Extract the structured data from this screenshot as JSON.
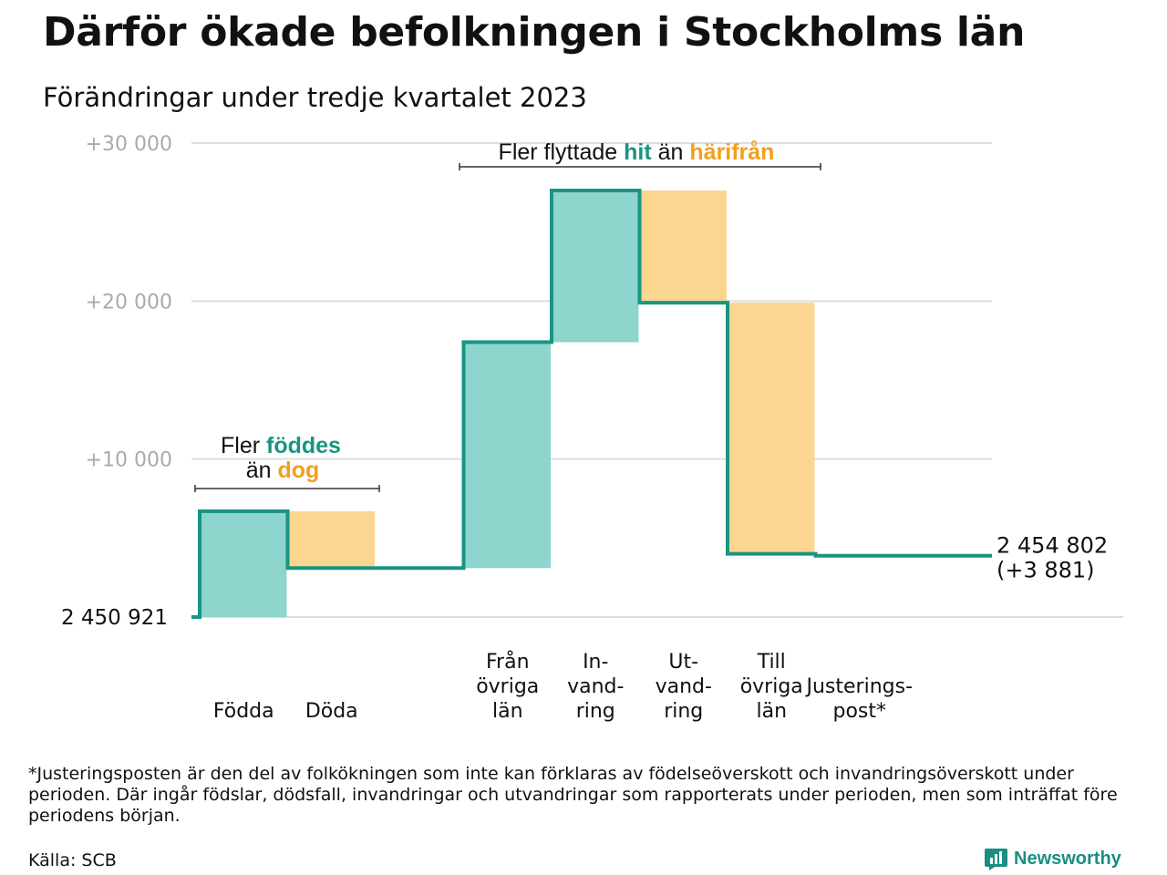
{
  "header": {
    "title": "Därför ökade befolkningen i Stockholms län",
    "subtitle": "Förändringar under tredje kvartalet 2023"
  },
  "chart_data": {
    "type": "waterfall",
    "baseline": 2450921,
    "baseline_label": "2 450 921",
    "yticks": [
      {
        "value": 10000,
        "label": "+10 000"
      },
      {
        "value": 20000,
        "label": "+20 000"
      },
      {
        "value": 30000,
        "label": "+30 000"
      }
    ],
    "ylim": [
      0,
      30000
    ],
    "steps": [
      {
        "name": "Födda",
        "label_lines": [
          "Födda"
        ],
        "delta": 6700,
        "kind": "in"
      },
      {
        "name": "Döda",
        "label_lines": [
          "Döda"
        ],
        "delta": -3600,
        "kind": "out"
      },
      {
        "name": "gap",
        "label_lines": [],
        "delta": 0,
        "kind": "gap"
      },
      {
        "name": "Från övriga län",
        "label_lines": [
          "Från",
          "övriga",
          "län"
        ],
        "delta": 14300,
        "kind": "in"
      },
      {
        "name": "Invandring",
        "label_lines": [
          "In-",
          "vand-",
          "ring"
        ],
        "delta": 9600,
        "kind": "in"
      },
      {
        "name": "Utvandring",
        "label_lines": [
          "Ut-",
          "vand-",
          "ring"
        ],
        "delta": -7100,
        "kind": "out"
      },
      {
        "name": "Till övriga län",
        "label_lines": [
          "Till",
          "övriga",
          "län"
        ],
        "delta": -15900,
        "kind": "out"
      },
      {
        "name": "Justeringspost",
        "label_lines": [
          "Justerings-",
          "post*"
        ],
        "delta": -119,
        "kind": "adjust"
      }
    ],
    "end_total_label": "2 454 802",
    "end_change_label": "(+3 881)",
    "annotations": [
      {
        "id": "births",
        "line1_prefix": "Fler ",
        "line1_highlight": "föddes",
        "line2_prefix": "än ",
        "line2_highlight": "dog"
      },
      {
        "id": "migration",
        "prefix": "Fler flyttade ",
        "highlight1": "hit",
        "middle": " än ",
        "highlight2": "härifrån"
      }
    ],
    "colors": {
      "in_fill": "#8dd5cd",
      "out_fill": "#fbd690",
      "step_line": "#1a9484",
      "in_text": "#1a9484",
      "out_text": "#f0a020",
      "grid": "#dddddd",
      "tick_text": "#aaaaaa"
    }
  },
  "footnote": "*Justeringsposten är den del av folkökningen som inte kan förklaras av födelseöverskott och invandringsöverskott under perioden. Där ingår födslar, dödsfall, invandringar och utvandringar som rapporterats under perioden, men som inträffat före periodens början.",
  "source": "Källa: SCB",
  "brand": {
    "name": "Newsworthy",
    "icon": "newsworthy-logo-icon"
  }
}
